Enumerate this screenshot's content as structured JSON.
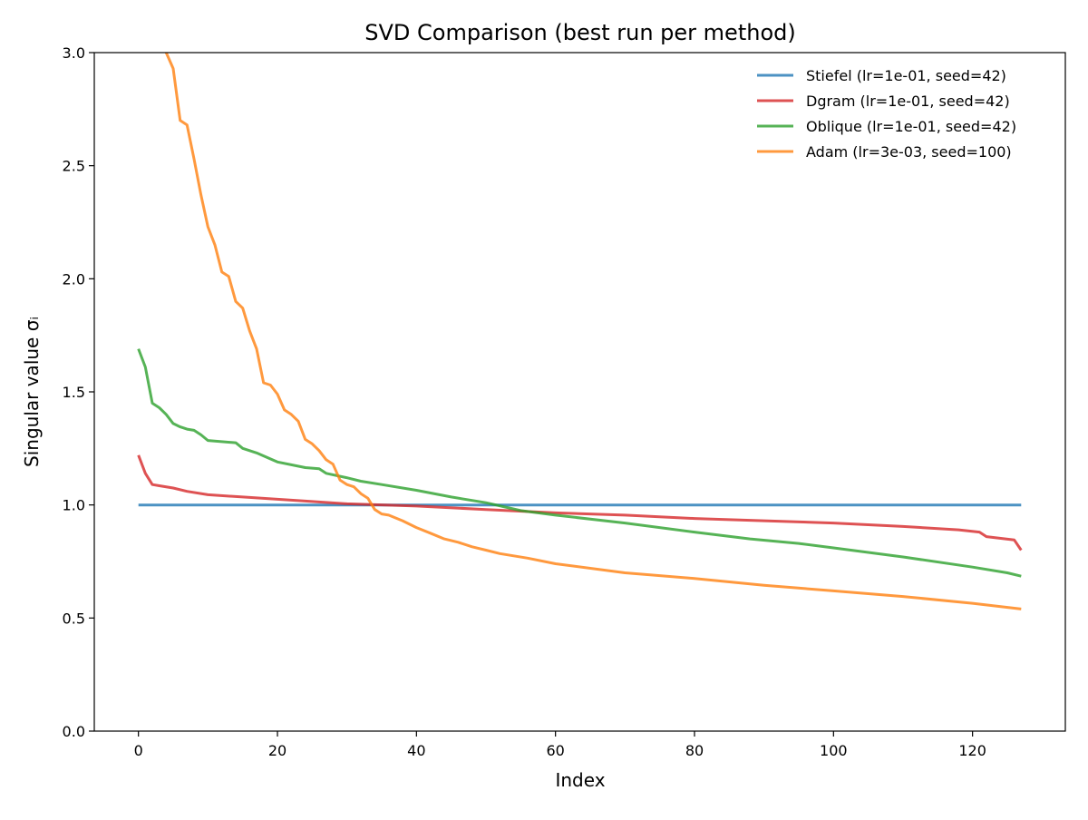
{
  "chart_data": {
    "type": "line",
    "title": "SVD Comparison (best run per method)",
    "xlabel": "Index",
    "ylabel": "Singular value σᵢ",
    "xlim": [
      -6.35,
      133.35
    ],
    "ylim": [
      0,
      3.0
    ],
    "xticks": [
      0,
      20,
      40,
      60,
      80,
      100,
      120
    ],
    "xtick_labels": [
      "0",
      "20",
      "40",
      "60",
      "80",
      "100",
      "120"
    ],
    "yticks": [
      0,
      0.5,
      1.0,
      1.5,
      2.0,
      2.5,
      3.0
    ],
    "ytick_labels": [
      "0.0",
      "0.5",
      "1.0",
      "1.5",
      "2.0",
      "2.5",
      "3.0"
    ],
    "grid": false,
    "legend_position": "top-right",
    "series": [
      {
        "name": "Stiefel (lr=1e-01, seed=42)",
        "color": "#1f77b4",
        "x": [
          0,
          127
        ],
        "y": [
          1.0,
          1.0
        ]
      },
      {
        "name": "Dgram (lr=1e-01, seed=42)",
        "color": "#d62728",
        "x": [
          0,
          1,
          2,
          3,
          5,
          7,
          10,
          15,
          20,
          25,
          30,
          40,
          50,
          60,
          70,
          80,
          90,
          100,
          110,
          118,
          121,
          122,
          126,
          127
        ],
        "y": [
          1.22,
          1.14,
          1.09,
          1.085,
          1.075,
          1.06,
          1.045,
          1.035,
          1.025,
          1.015,
          1.005,
          0.995,
          0.98,
          0.965,
          0.955,
          0.94,
          0.93,
          0.92,
          0.905,
          0.89,
          0.88,
          0.86,
          0.845,
          0.8
        ]
      },
      {
        "name": "Oblique (lr=1e-01, seed=42)",
        "color": "#2ca02c",
        "x": [
          0,
          1,
          2,
          3,
          4,
          5,
          6,
          7,
          8,
          9,
          10,
          14,
          15,
          17,
          20,
          24,
          26,
          27,
          30,
          32,
          35,
          40,
          45,
          50,
          55,
          60,
          70,
          80,
          88,
          95,
          100,
          110,
          120,
          125,
          127
        ],
        "y": [
          1.69,
          1.61,
          1.45,
          1.43,
          1.4,
          1.36,
          1.345,
          1.335,
          1.33,
          1.31,
          1.285,
          1.275,
          1.25,
          1.23,
          1.19,
          1.165,
          1.16,
          1.14,
          1.12,
          1.105,
          1.09,
          1.065,
          1.035,
          1.01,
          0.975,
          0.955,
          0.92,
          0.88,
          0.85,
          0.83,
          0.81,
          0.77,
          0.725,
          0.7,
          0.685
        ]
      },
      {
        "name": "Adam (lr=3e-03, seed=100)",
        "color": "#ff7f0e",
        "x": [
          3,
          4,
          5,
          6,
          7,
          8,
          9,
          10,
          11,
          12,
          13,
          14,
          15,
          16,
          17,
          18,
          19,
          20,
          21,
          22,
          23,
          24,
          25,
          26,
          27,
          28,
          29,
          30,
          31,
          32,
          33,
          34,
          35,
          36,
          38,
          40,
          42,
          44,
          46,
          48,
          50,
          52,
          56,
          60,
          70,
          80,
          90,
          100,
          110,
          120,
          127
        ],
        "y": [
          3.3,
          3.0,
          2.93,
          2.7,
          2.68,
          2.53,
          2.37,
          2.23,
          2.15,
          2.03,
          2.01,
          1.9,
          1.87,
          1.77,
          1.69,
          1.54,
          1.53,
          1.49,
          1.42,
          1.4,
          1.37,
          1.29,
          1.27,
          1.24,
          1.2,
          1.18,
          1.11,
          1.09,
          1.08,
          1.05,
          1.03,
          0.98,
          0.96,
          0.955,
          0.93,
          0.9,
          0.875,
          0.85,
          0.835,
          0.815,
          0.8,
          0.785,
          0.765,
          0.74,
          0.7,
          0.675,
          0.645,
          0.62,
          0.595,
          0.565,
          0.54
        ]
      }
    ]
  }
}
